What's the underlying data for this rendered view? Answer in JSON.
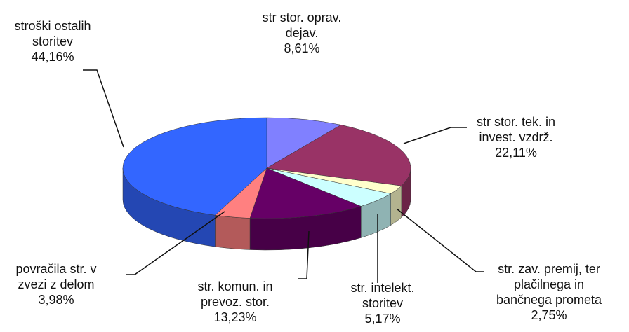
{
  "chart_data": {
    "type": "pie",
    "categories": [
      "str stor. oprav.\ndejav.",
      "str stor. tek. in\ninvest. vzdrž.",
      "str. zav. premij, ter\nplačilnega in\nbančnega prometa",
      "str. intelekt.\nstoritev",
      "str. komun. in\nprevoz. stor.",
      "povračila str. v\nzvezi z delom",
      "stroški ostalih\nstoritev"
    ],
    "values": [
      8.61,
      22.11,
      2.75,
      5.17,
      13.23,
      3.98,
      44.16
    ],
    "value_labels": [
      "8,61%",
      "22,11%",
      "2,75%",
      "5,17%",
      "13,23%",
      "3,98%",
      "44,16%"
    ],
    "colors": [
      "#8080ff",
      "#993366",
      "#ffffcc",
      "#ccffff",
      "#660066",
      "#ff8080",
      "#3366ff"
    ]
  }
}
